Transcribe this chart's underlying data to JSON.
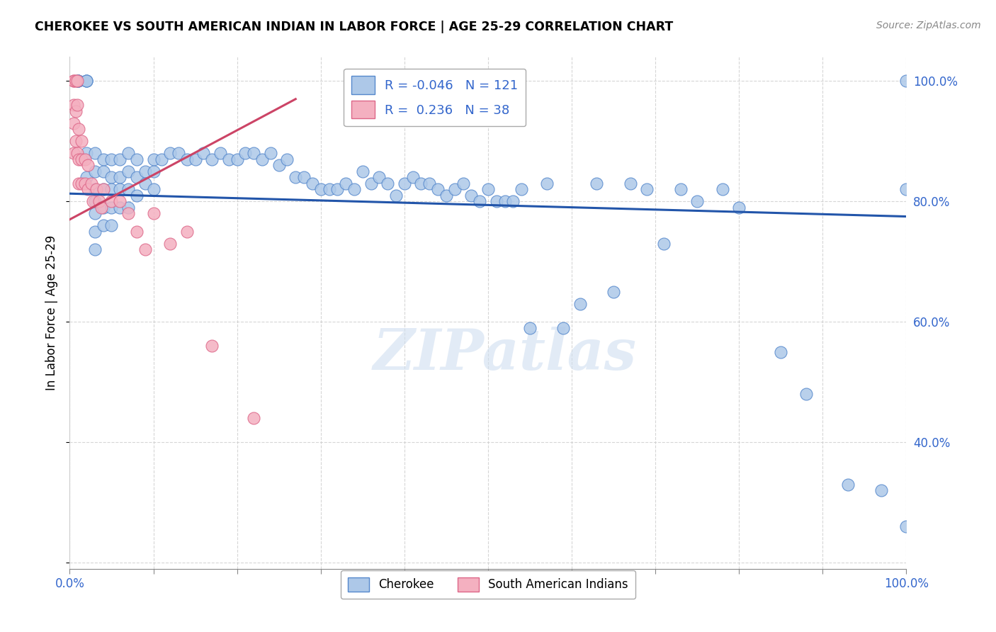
{
  "title": "CHEROKEE VS SOUTH AMERICAN INDIAN IN LABOR FORCE | AGE 25-29 CORRELATION CHART",
  "source": "Source: ZipAtlas.com",
  "ylabel": "In Labor Force | Age 25-29",
  "xlim": [
    0,
    1
  ],
  "ylim": [
    0.19,
    1.04
  ],
  "x_ticks": [
    0.0,
    0.1,
    0.2,
    0.3,
    0.4,
    0.5,
    0.6,
    0.7,
    0.8,
    0.9,
    1.0
  ],
  "y_ticks": [
    0.2,
    0.4,
    0.6,
    0.8,
    1.0
  ],
  "blue_R": -0.046,
  "blue_N": 121,
  "pink_R": 0.236,
  "pink_N": 38,
  "blue_color": "#adc8e8",
  "blue_edge_color": "#5588cc",
  "blue_line_color": "#2255aa",
  "pink_color": "#f4b0c0",
  "pink_edge_color": "#dd6688",
  "pink_line_color": "#cc4466",
  "legend_label_blue": "Cherokee",
  "legend_label_pink": "South American Indians",
  "watermark": "ZIPatlas",
  "blue_trend_x": [
    0.0,
    1.0
  ],
  "blue_trend_y": [
    0.813,
    0.775
  ],
  "pink_trend_x": [
    0.0,
    0.27
  ],
  "pink_trend_y": [
    0.77,
    0.97
  ],
  "blue_scatter_x": [
    0.01,
    0.01,
    0.01,
    0.01,
    0.02,
    0.02,
    0.02,
    0.02,
    0.02,
    0.03,
    0.03,
    0.03,
    0.03,
    0.03,
    0.03,
    0.03,
    0.04,
    0.04,
    0.04,
    0.04,
    0.04,
    0.05,
    0.05,
    0.05,
    0.05,
    0.05,
    0.06,
    0.06,
    0.06,
    0.06,
    0.07,
    0.07,
    0.07,
    0.07,
    0.08,
    0.08,
    0.08,
    0.09,
    0.09,
    0.1,
    0.1,
    0.1,
    0.11,
    0.12,
    0.13,
    0.14,
    0.15,
    0.16,
    0.17,
    0.18,
    0.19,
    0.2,
    0.21,
    0.22,
    0.23,
    0.24,
    0.25,
    0.26,
    0.27,
    0.28,
    0.29,
    0.3,
    0.31,
    0.32,
    0.33,
    0.34,
    0.35,
    0.36,
    0.37,
    0.38,
    0.39,
    0.4,
    0.41,
    0.42,
    0.43,
    0.44,
    0.45,
    0.46,
    0.47,
    0.48,
    0.49,
    0.5,
    0.51,
    0.52,
    0.53,
    0.54,
    0.55,
    0.57,
    0.59,
    0.61,
    0.63,
    0.65,
    0.67,
    0.69,
    0.71,
    0.73,
    0.75,
    0.78,
    0.8,
    0.85,
    0.88,
    0.93,
    0.97,
    1.0,
    1.0,
    1.0
  ],
  "blue_scatter_y": [
    1.0,
    1.0,
    1.0,
    1.0,
    1.0,
    1.0,
    1.0,
    0.88,
    0.84,
    0.88,
    0.85,
    0.82,
    0.8,
    0.78,
    0.75,
    0.72,
    0.87,
    0.85,
    0.82,
    0.79,
    0.76,
    0.87,
    0.84,
    0.82,
    0.79,
    0.76,
    0.87,
    0.84,
    0.82,
    0.79,
    0.88,
    0.85,
    0.82,
    0.79,
    0.87,
    0.84,
    0.81,
    0.85,
    0.83,
    0.87,
    0.85,
    0.82,
    0.87,
    0.88,
    0.88,
    0.87,
    0.87,
    0.88,
    0.87,
    0.88,
    0.87,
    0.87,
    0.88,
    0.88,
    0.87,
    0.88,
    0.86,
    0.87,
    0.84,
    0.84,
    0.83,
    0.82,
    0.82,
    0.82,
    0.83,
    0.82,
    0.85,
    0.83,
    0.84,
    0.83,
    0.81,
    0.83,
    0.84,
    0.83,
    0.83,
    0.82,
    0.81,
    0.82,
    0.83,
    0.81,
    0.8,
    0.82,
    0.8,
    0.8,
    0.8,
    0.82,
    0.59,
    0.83,
    0.59,
    0.63,
    0.83,
    0.65,
    0.83,
    0.82,
    0.73,
    0.82,
    0.8,
    0.82,
    0.79,
    0.55,
    0.48,
    0.33,
    0.32,
    0.26,
    0.82,
    1.0
  ],
  "pink_scatter_x": [
    0.005,
    0.005,
    0.005,
    0.005,
    0.005,
    0.007,
    0.007,
    0.007,
    0.009,
    0.009,
    0.009,
    0.011,
    0.011,
    0.011,
    0.014,
    0.014,
    0.014,
    0.018,
    0.018,
    0.022,
    0.022,
    0.026,
    0.028,
    0.032,
    0.035,
    0.038,
    0.04,
    0.05,
    0.06,
    0.07,
    0.08,
    0.09,
    0.1,
    0.12,
    0.14,
    0.17,
    0.22
  ],
  "pink_scatter_y": [
    1.0,
    1.0,
    0.96,
    0.93,
    0.88,
    1.0,
    0.95,
    0.9,
    1.0,
    0.96,
    0.88,
    0.92,
    0.87,
    0.83,
    0.9,
    0.87,
    0.83,
    0.87,
    0.83,
    0.86,
    0.82,
    0.83,
    0.8,
    0.82,
    0.8,
    0.79,
    0.82,
    0.8,
    0.8,
    0.78,
    0.75,
    0.72,
    0.78,
    0.73,
    0.75,
    0.56,
    0.44
  ]
}
